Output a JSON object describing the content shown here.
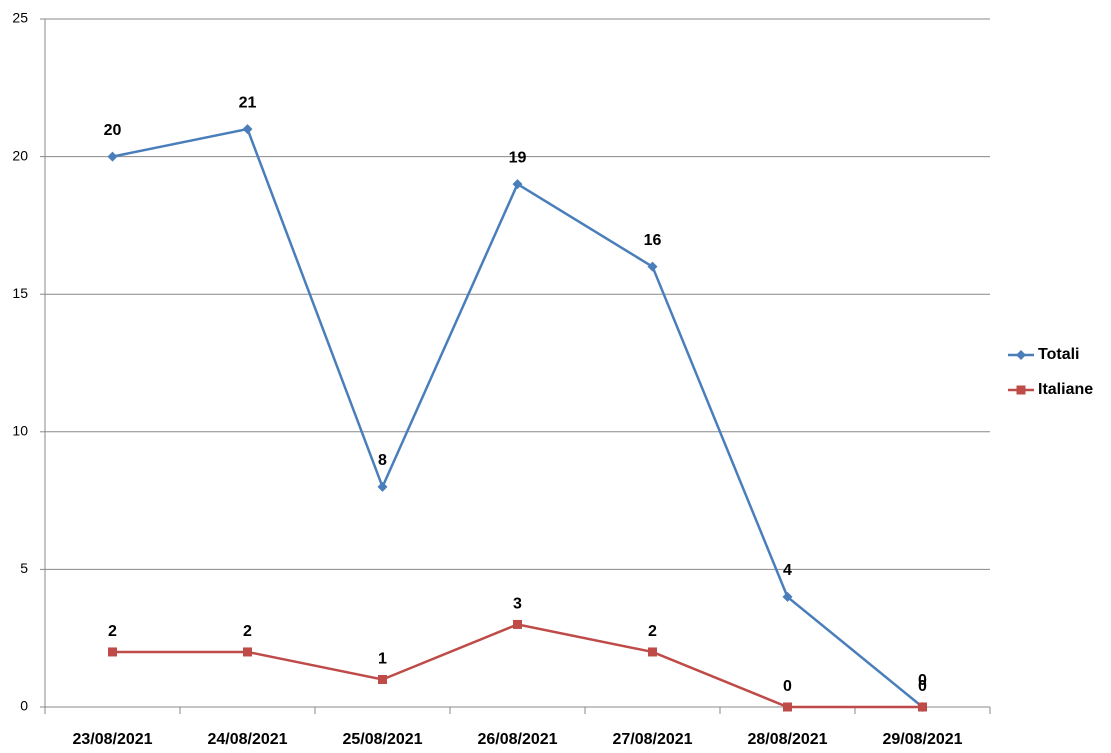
{
  "chart_data": {
    "type": "line",
    "categories": [
      "23/08/2021",
      "24/08/2021",
      "25/08/2021",
      "26/08/2021",
      "27/08/2021",
      "28/08/2021",
      "29/08/2021"
    ],
    "series": [
      {
        "name": "Totali",
        "color": "#4a7ebb",
        "marker": "diamond",
        "values": [
          20,
          21,
          8,
          19,
          16,
          4,
          0
        ]
      },
      {
        "name": "Italiane",
        "color": "#be4b48",
        "marker": "square",
        "values": [
          2,
          2,
          1,
          3,
          2,
          0,
          0
        ]
      }
    ],
    "ylim": [
      0,
      25
    ],
    "yticks": [
      0,
      5,
      10,
      15,
      20,
      25
    ],
    "grid": true,
    "legend": "right"
  }
}
